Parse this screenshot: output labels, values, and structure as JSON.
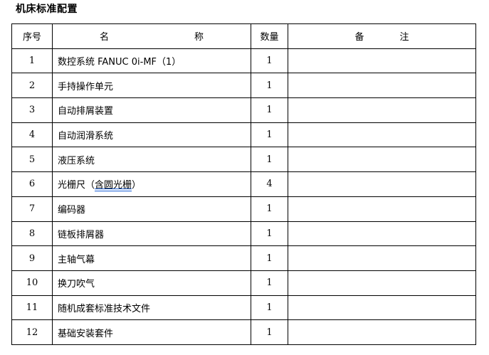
{
  "title": "机床标准配置",
  "headers": {
    "no": "序号",
    "name_1": "名",
    "name_2": "称",
    "qty": "数量",
    "remark_1": "备",
    "remark_2": "注"
  },
  "rows": [
    {
      "no": "1",
      "name": "数控系统 FANUC 0i-MF（1）",
      "qty": "1",
      "remark": ""
    },
    {
      "no": "2",
      "name": "手持操作单元",
      "qty": "1",
      "remark": ""
    },
    {
      "no": "3",
      "name": "自动排屑装置",
      "qty": "1",
      "remark": ""
    },
    {
      "no": "4",
      "name": "自动润滑系统",
      "qty": "1",
      "remark": ""
    },
    {
      "no": "5",
      "name": "液压系统",
      "qty": "1",
      "remark": ""
    },
    {
      "no": "6",
      "name_prefix": "光栅尺（",
      "name_marked": "含圆光栅",
      "name_suffix": "）",
      "qty": "4",
      "remark": ""
    },
    {
      "no": "7",
      "name": "编码器",
      "qty": "1",
      "remark": ""
    },
    {
      "no": "8",
      "name": "链板排屑器",
      "qty": "1",
      "remark": ""
    },
    {
      "no": "9",
      "name": "主轴气幕",
      "qty": "1",
      "remark": ""
    },
    {
      "no": "10",
      "name": "换刀吹气",
      "qty": "1",
      "remark": ""
    },
    {
      "no": "11",
      "name": "随机成套标准技术文件",
      "qty": "1",
      "remark": ""
    },
    {
      "no": "12",
      "name": "基础安装套件",
      "qty": "1",
      "remark": ""
    }
  ],
  "colors": {
    "underline_mark": "#1a5fd6"
  }
}
